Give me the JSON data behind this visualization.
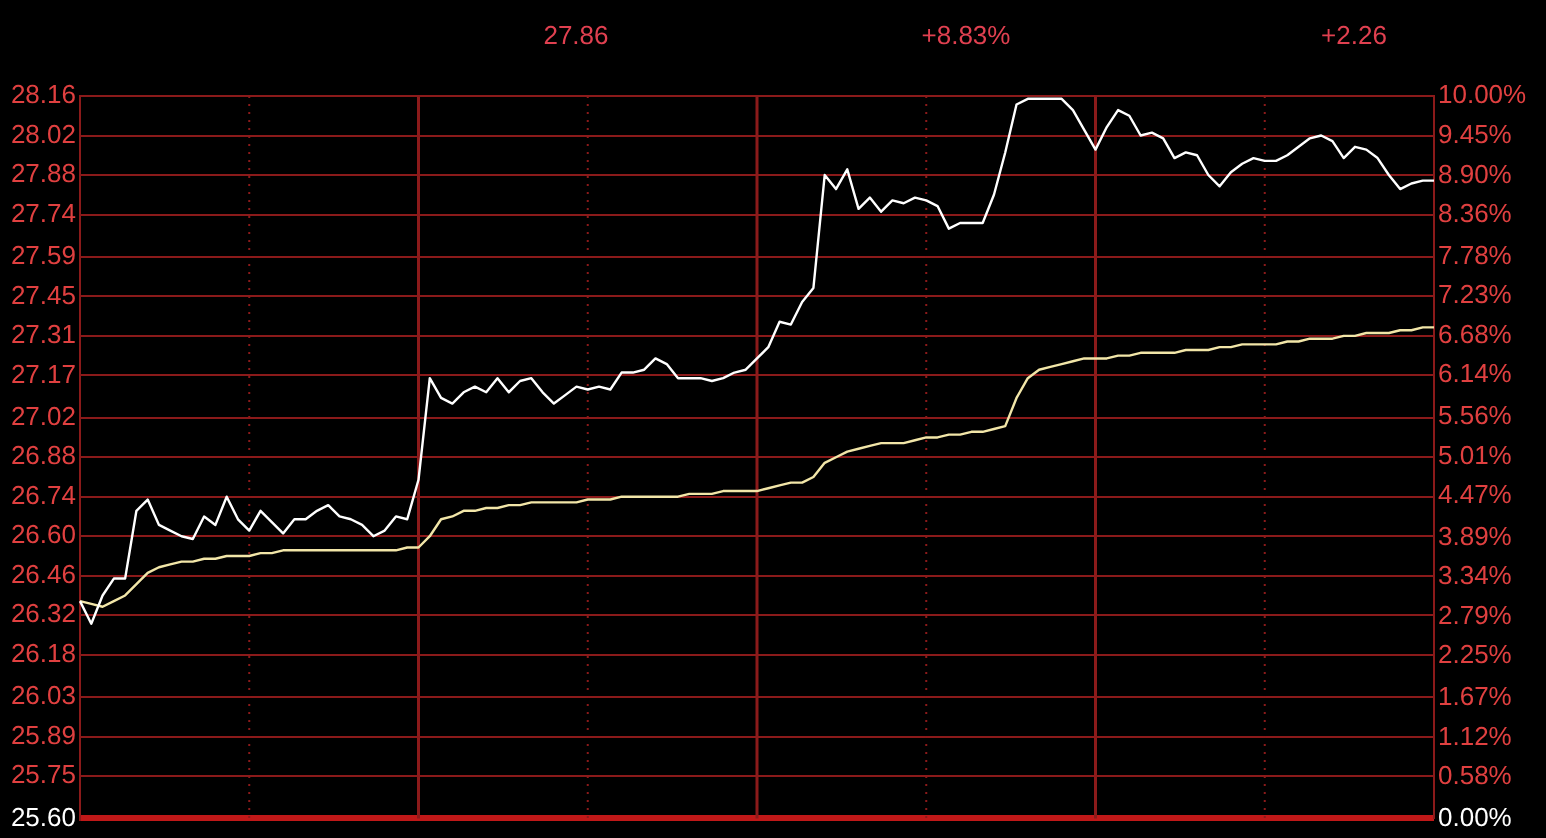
{
  "chart_data": {
    "type": "line",
    "annotations": [
      "27.86",
      "+8.83%",
      "+2.26"
    ],
    "categories": [
      null,
      null,
      null,
      null,
      null,
      null,
      null,
      null,
      null,
      null,
      null,
      null,
      null,
      null,
      null,
      null,
      null,
      null,
      null,
      null,
      null,
      null,
      null,
      null,
      null,
      null,
      null,
      null,
      null,
      null,
      null,
      null,
      null,
      null,
      null,
      null,
      null,
      null,
      null,
      null,
      null,
      null,
      null,
      null,
      null,
      null,
      null,
      null,
      null,
      null,
      null,
      null,
      null,
      null,
      null,
      null,
      null,
      null,
      null,
      null,
      null,
      null,
      null,
      null,
      null,
      null,
      null,
      null,
      null,
      null,
      null,
      null,
      null,
      null,
      null,
      null,
      null,
      null,
      null,
      null,
      null,
      null,
      null,
      null,
      null,
      null,
      null,
      null,
      null,
      null,
      null,
      null,
      null,
      null,
      null,
      null,
      null,
      null,
      null,
      null,
      null,
      null,
      null,
      null,
      null,
      null,
      null,
      null,
      null,
      null,
      null,
      null,
      null,
      null,
      null,
      null,
      null,
      null,
      null,
      null,
      null
    ],
    "series": [
      {
        "color": "#ffffff",
        "values": [
          26.37,
          26.29,
          26.39,
          26.45,
          26.45,
          26.69,
          26.73,
          26.64,
          26.62,
          26.6,
          26.59,
          26.67,
          26.64,
          26.74,
          26.66,
          26.62,
          26.69,
          26.65,
          26.61,
          26.66,
          26.66,
          26.69,
          26.71,
          26.67,
          26.66,
          26.64,
          26.6,
          26.62,
          26.67,
          26.66,
          26.8,
          27.16,
          27.09,
          27.07,
          27.11,
          27.13,
          27.11,
          27.16,
          27.11,
          27.15,
          27.16,
          27.11,
          27.07,
          27.1,
          27.13,
          27.12,
          27.13,
          27.12,
          27.18,
          27.18,
          27.19,
          27.23,
          27.21,
          27.16,
          27.16,
          27.16,
          27.15,
          27.16,
          27.18,
          27.19,
          27.23,
          27.27,
          27.36,
          27.35,
          27.43,
          27.48,
          27.88,
          27.83,
          27.9,
          27.76,
          27.8,
          27.75,
          27.79,
          27.78,
          27.8,
          27.79,
          27.77,
          27.69,
          27.71,
          27.71,
          27.71,
          27.81,
          27.96,
          28.13,
          28.15,
          28.15,
          28.15,
          28.15,
          28.11,
          28.04,
          27.97,
          28.05,
          28.11,
          28.09,
          28.02,
          28.03,
          28.01,
          27.94,
          27.96,
          27.95,
          27.88,
          27.84,
          27.89,
          27.92,
          27.94,
          27.93,
          27.93,
          27.95,
          27.98,
          28.01,
          28.02,
          28.0,
          27.94,
          27.98,
          27.97,
          27.94,
          27.88,
          27.83,
          27.85,
          27.86,
          27.86
        ]
      },
      {
        "color": "#f2e6a8",
        "values": [
          26.37,
          26.36,
          26.35,
          26.37,
          26.39,
          26.43,
          26.47,
          26.49,
          26.5,
          26.51,
          26.51,
          26.52,
          26.52,
          26.53,
          26.53,
          26.53,
          26.54,
          26.54,
          26.55,
          26.55,
          26.55,
          26.55,
          26.55,
          26.55,
          26.55,
          26.55,
          26.55,
          26.55,
          26.55,
          26.56,
          26.56,
          26.6,
          26.66,
          26.67,
          26.69,
          26.69,
          26.7,
          26.7,
          26.71,
          26.71,
          26.72,
          26.72,
          26.72,
          26.72,
          26.72,
          26.73,
          26.73,
          26.73,
          26.74,
          26.74,
          26.74,
          26.74,
          26.74,
          26.74,
          26.75,
          26.75,
          26.75,
          26.76,
          26.76,
          26.76,
          26.76,
          26.77,
          26.78,
          26.79,
          26.79,
          26.81,
          26.86,
          26.88,
          26.9,
          26.91,
          26.92,
          26.93,
          26.93,
          26.93,
          26.94,
          26.95,
          26.95,
          26.96,
          26.96,
          26.97,
          26.97,
          26.98,
          26.99,
          27.09,
          27.16,
          27.19,
          27.2,
          27.21,
          27.22,
          27.23,
          27.23,
          27.23,
          27.24,
          27.24,
          27.25,
          27.25,
          27.25,
          27.25,
          27.26,
          27.26,
          27.26,
          27.27,
          27.27,
          27.28,
          27.28,
          27.28,
          27.28,
          27.29,
          27.29,
          27.3,
          27.3,
          27.3,
          27.31,
          27.31,
          27.32,
          27.32,
          27.32,
          27.33,
          27.33,
          27.34,
          27.34
        ]
      }
    ],
    "ylim": [
      25.6,
      28.16
    ],
    "yticks": [
      {
        "value": 25.6,
        "label": "25.60"
      },
      25.75,
      25.89,
      26.03,
      26.18,
      26.32,
      26.46,
      {
        "value": 26.6,
        "label": "26.60"
      },
      26.74,
      26.88,
      27.02,
      27.17,
      27.31,
      27.45,
      27.59,
      27.74,
      27.88,
      28.02,
      28.16
    ],
    "y2lim": [
      0,
      10
    ],
    "y2ticks": [
      {
        "value": 0,
        "label": "0.00%"
      },
      {
        "value": 0.58,
        "label": "0.58%"
      },
      {
        "value": 1.12,
        "label": "1.12%"
      },
      {
        "value": 1.67,
        "label": "1.67%"
      },
      {
        "value": 2.25,
        "label": "2.25%"
      },
      {
        "value": 2.79,
        "label": "2.79%"
      },
      {
        "value": 3.34,
        "label": "3.34%"
      },
      {
        "value": 3.89,
        "label": "3.89%"
      },
      {
        "value": 4.47,
        "label": "4.47%"
      },
      {
        "value": 5.01,
        "label": "5.01%"
      },
      {
        "value": 5.56,
        "label": "5.56%"
      },
      {
        "value": 6.14,
        "label": "6.14%"
      },
      {
        "value": 6.68,
        "label": "6.68%"
      },
      {
        "value": 7.23,
        "label": "7.23%"
      },
      {
        "value": 7.78,
        "label": "7.78%"
      },
      {
        "value": 8.36,
        "label": "8.36%"
      },
      {
        "value": 8.9,
        "label": "8.90%"
      },
      {
        "value": 9.45,
        "label": "9.45%"
      },
      {
        "value": 10,
        "label": "10.00%"
      }
    ],
    "grid": true,
    "legend": false,
    "marker": "none",
    "line_style": "solid"
  }
}
